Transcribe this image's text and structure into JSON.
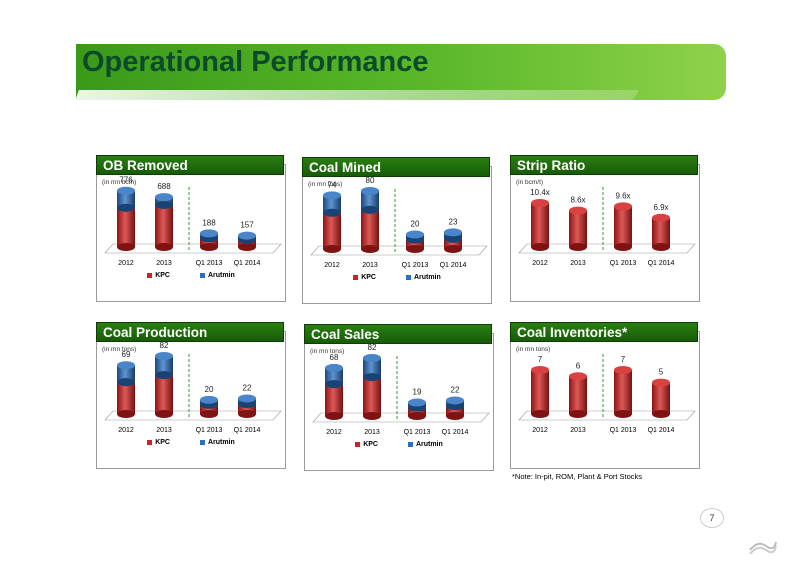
{
  "page": {
    "title": "Operational Performance",
    "note": "*Note: In-pit, ROM, Plant & Port Stocks",
    "page_number": "7"
  },
  "colors": {
    "kpc": "#d42020",
    "arutmin": "#2a6fc0",
    "header": "#1e6a0c",
    "divider": "#2aa02a"
  },
  "legend": {
    "kpc": "KPC",
    "arutmin": "Arutmin"
  },
  "chart_data": [
    {
      "id": "ob",
      "type": "bar",
      "stacked": true,
      "title": "OB Removed",
      "unit": "(in mn bcm)",
      "categories": [
        "2012",
        "2013",
        "Q1 2013",
        "Q1 2014"
      ],
      "series": [
        {
          "name": "KPC",
          "values": [
            540,
            580,
            120,
            100
          ]
        },
        {
          "name": "Arutmin",
          "values": [
            236,
            108,
            68,
            57
          ]
        }
      ],
      "totals": [
        "776",
        "688",
        "188",
        "157"
      ],
      "ymax": 800,
      "legend": true
    },
    {
      "id": "mined",
      "type": "bar",
      "stacked": true,
      "title": "Coal Mined",
      "unit": "(in mn tons)",
      "categories": [
        "2012",
        "2013",
        "Q1 2013",
        "Q1 2014"
      ],
      "series": [
        {
          "name": "KPC",
          "values": [
            50,
            54,
            13,
            14
          ]
        },
        {
          "name": "Arutmin",
          "values": [
            24,
            26,
            7,
            9
          ]
        }
      ],
      "totals": [
        "74",
        "80",
        "20",
        "23"
      ],
      "ymax": 80,
      "legend": true
    },
    {
      "id": "strip",
      "type": "bar",
      "stacked": false,
      "title": "Strip Ratio",
      "unit": "(in bcm/t)",
      "categories": [
        "2012",
        "2013",
        "Q1 2013",
        "Q1 2014"
      ],
      "series": [
        {
          "name": "Strip Ratio",
          "values": [
            10.4,
            8.6,
            9.6,
            6.9
          ]
        }
      ],
      "totals": [
        "10.4x",
        "8.6x",
        "9.6x",
        "6.9x"
      ],
      "ymax": 10.4,
      "legend": false
    },
    {
      "id": "prod",
      "type": "bar",
      "stacked": true,
      "title": "Coal Production",
      "unit": "(in mn tons)",
      "categories": [
        "2012",
        "2013",
        "Q1 2013",
        "Q1 2014"
      ],
      "series": [
        {
          "name": "KPC",
          "values": [
            45,
            55,
            13,
            14
          ]
        },
        {
          "name": "Arutmin",
          "values": [
            24,
            27,
            7,
            8
          ]
        }
      ],
      "totals": [
        "69",
        "82",
        "20",
        "22"
      ],
      "ymax": 82,
      "legend": true
    },
    {
      "id": "sales",
      "type": "bar",
      "stacked": true,
      "title": "Coal Sales",
      "unit": "(in mn tons)",
      "categories": [
        "2012",
        "2013",
        "Q1 2013",
        "Q1 2014"
      ],
      "series": [
        {
          "name": "KPC",
          "values": [
            45,
            55,
            12,
            14
          ]
        },
        {
          "name": "Arutmin",
          "values": [
            23,
            27,
            7,
            8
          ]
        }
      ],
      "totals": [
        "68",
        "82",
        "19",
        "22"
      ],
      "ymax": 82,
      "legend": true
    },
    {
      "id": "inv",
      "type": "bar",
      "stacked": false,
      "title": "Coal Inventories*",
      "unit": "(in mn tons)",
      "categories": [
        "2012",
        "2013",
        "Q1 2013",
        "Q1 2014"
      ],
      "series": [
        {
          "name": "Coal Inventories",
          "values": [
            7,
            6,
            7,
            5
          ]
        }
      ],
      "totals": [
        "7",
        "6",
        "7",
        "5"
      ],
      "ymax": 7,
      "legend": false
    }
  ]
}
